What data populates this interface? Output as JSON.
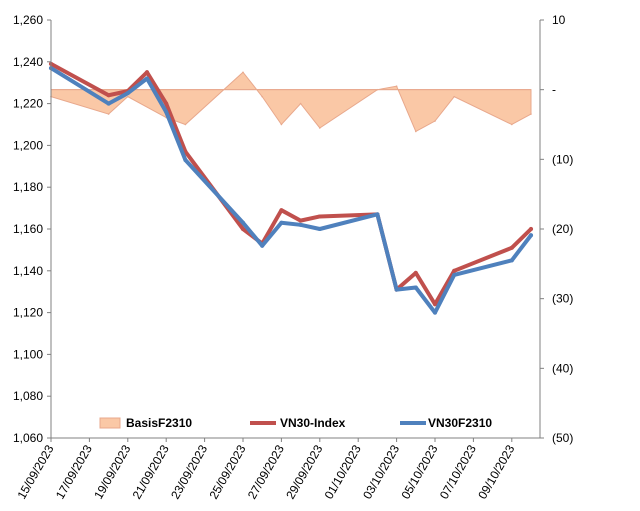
{
  "chart_data": {
    "type": "line",
    "title": "",
    "x": [
      "15/09/2023",
      "17/09/2023",
      "18/09/2023",
      "19/09/2023",
      "20/09/2023",
      "21/09/2023",
      "22/09/2023",
      "23/09/2023",
      "25/09/2023",
      "26/09/2023",
      "27/09/2023",
      "28/09/2023",
      "29/09/2023",
      "02/10/2023",
      "03/10/2023",
      "04/10/2023",
      "05/10/2023",
      "06/10/2023",
      "09/10/2023",
      "10/10/2023"
    ],
    "x_tick_labels": [
      "15/09/2023",
      "17/09/2023",
      "19/09/2023",
      "21/09/2023",
      "23/09/2023",
      "25/09/2023",
      "27/09/2023",
      "29/09/2023",
      "01/10/2023",
      "03/10/2023",
      "05/10/2023",
      "07/10/2023",
      "09/10/2023"
    ],
    "y_left": {
      "ticks": [
        "1,060",
        "1,080",
        "1,100",
        "1,120",
        "1,140",
        "1,160",
        "1,180",
        "1,200",
        "1,220",
        "1,240",
        "1,260"
      ],
      "ylim": [
        1060,
        1260
      ]
    },
    "y_right": {
      "ticks": [
        "10",
        "-",
        "(10)",
        "(20)",
        "(30)",
        "(40)",
        "(50)"
      ],
      "ylim": [
        -50,
        10
      ]
    },
    "series": [
      {
        "name": "BasisF2310",
        "axis": "right",
        "style": "area",
        "color": "#FAC8A6",
        "x": [
          "15/09/2023",
          "18/09/2023",
          "19/09/2023",
          "21/09/2023",
          "22/09/2023",
          "25/09/2023",
          "26/09/2023",
          "27/09/2023",
          "28/09/2023",
          "29/09/2023",
          "02/10/2023",
          "03/10/2023",
          "04/10/2023",
          "05/10/2023",
          "06/10/2023",
          "09/10/2023",
          "10/10/2023"
        ],
        "values": [
          -1,
          -3.5,
          -1,
          -4,
          -5,
          2.5,
          -1,
          -5,
          -2,
          -5.5,
          0,
          0.5,
          -6,
          -4.5,
          -1,
          -5,
          -3.5
        ]
      },
      {
        "name": "VN30-Index",
        "axis": "left",
        "color": "#C0504D",
        "x": [
          "15/09/2023",
          "18/09/2023",
          "19/09/2023",
          "20/09/2023",
          "21/09/2023",
          "22/09/2023",
          "25/09/2023",
          "26/09/2023",
          "27/09/2023",
          "28/09/2023",
          "29/09/2023",
          "02/10/2023",
          "03/10/2023",
          "04/10/2023",
          "05/10/2023",
          "06/10/2023",
          "09/10/2023",
          "10/10/2023"
        ],
        "values": [
          1239,
          1224,
          1226,
          1235,
          1220,
          1197,
          1160,
          1153,
          1169,
          1164,
          1166,
          1167,
          1131,
          1139,
          1124,
          1140,
          1151,
          1160
        ]
      },
      {
        "name": "VN30F2310",
        "axis": "left",
        "color": "#4F81BD",
        "x": [
          "15/09/2023",
          "18/09/2023",
          "19/09/2023",
          "20/09/2023",
          "21/09/2023",
          "22/09/2023",
          "25/09/2023",
          "26/09/2023",
          "27/09/2023",
          "28/09/2023",
          "29/09/2023",
          "02/10/2023",
          "03/10/2023",
          "04/10/2023",
          "05/10/2023",
          "06/10/2023",
          "09/10/2023",
          "10/10/2023"
        ],
        "values": [
          1237,
          1220,
          1225,
          1232,
          1216,
          1193,
          1163,
          1152,
          1163,
          1162,
          1160,
          1167,
          1131,
          1132,
          1120,
          1138,
          1145,
          1157
        ]
      }
    ],
    "legend": {
      "placement": "bottom-inside",
      "items": [
        "BasisF2310",
        "VN30-Index",
        "VN30F2310"
      ]
    },
    "grid": false
  }
}
